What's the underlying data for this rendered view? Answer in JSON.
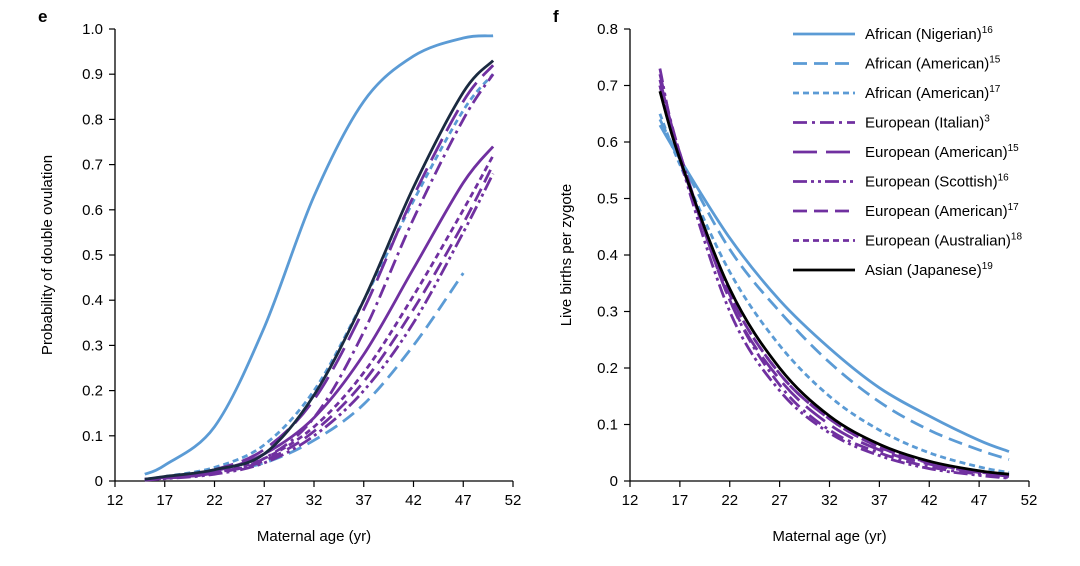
{
  "chart_data": [
    {
      "type": "line",
      "panel_label": "e",
      "xlabel": "Maternal age (yr)",
      "ylabel": "Probability of double ovulation",
      "xlim": [
        12,
        52
      ],
      "ylim": [
        0,
        1.0
      ],
      "xticks": [
        "12",
        "17",
        "22",
        "27",
        "32",
        "37",
        "42",
        "47",
        "52"
      ],
      "yticks": [
        "0",
        "0.1",
        "0.2",
        "0.3",
        "0.4",
        "0.5",
        "0.6",
        "0.7",
        "0.8",
        "0.9",
        "1.0"
      ],
      "grid": false,
      "series": [
        {
          "name": "African (Nigerian)",
          "sup": "16",
          "color": "#5b9bd5",
          "dash": "solid",
          "x": [
            15,
            17,
            22,
            27,
            32,
            37,
            42,
            47,
            50
          ],
          "y": [
            0.015,
            0.035,
            0.12,
            0.34,
            0.63,
            0.84,
            0.94,
            0.98,
            0.985
          ]
        },
        {
          "name": "African (American)",
          "sup": "15",
          "color": "#5b9bd5",
          "dash": "dash",
          "x": [
            15,
            17,
            22,
            27,
            32,
            37,
            42,
            47
          ],
          "y": [
            0.003,
            0.008,
            0.02,
            0.04,
            0.09,
            0.17,
            0.3,
            0.46
          ]
        },
        {
          "name": "African (American)",
          "sup": "17",
          "color": "#5b9bd5",
          "dash": "shortdash",
          "x": [
            15,
            17,
            22,
            27,
            32,
            37,
            42,
            47,
            50
          ],
          "y": [
            0.004,
            0.01,
            0.03,
            0.08,
            0.2,
            0.4,
            0.62,
            0.82,
            0.9
          ]
        },
        {
          "name": "European (Italian)",
          "sup": "3",
          "color": "#7030a0",
          "dash": "dashdot",
          "x": [
            15,
            17,
            22,
            27,
            32,
            37,
            42,
            47,
            50
          ],
          "y": [
            0.003,
            0.006,
            0.018,
            0.05,
            0.14,
            0.33,
            0.58,
            0.8,
            0.9
          ]
        },
        {
          "name": "European (American)",
          "sup": "15",
          "color": "#7030a0",
          "dash": "longdash",
          "x": [
            15,
            17,
            22,
            27,
            32,
            37,
            42,
            47,
            50
          ],
          "y": [
            0.004,
            0.008,
            0.025,
            0.07,
            0.18,
            0.38,
            0.63,
            0.84,
            0.92
          ]
        },
        {
          "name": "European (Scottish)",
          "sup": "16",
          "color": "#7030a0",
          "dash": "dashdotdot",
          "x": [
            15,
            17,
            22,
            27,
            32,
            37,
            42,
            47,
            50
          ],
          "y": [
            0.002,
            0.005,
            0.015,
            0.04,
            0.1,
            0.2,
            0.35,
            0.55,
            0.68
          ]
        },
        {
          "name": "European (American)",
          "sup": "17",
          "color": "#7030a0",
          "dash": "dash",
          "x": [
            15,
            17,
            22,
            27,
            32,
            37,
            42,
            47,
            50
          ],
          "y": [
            0.003,
            0.006,
            0.017,
            0.045,
            0.11,
            0.22,
            0.38,
            0.57,
            0.7
          ]
        },
        {
          "name": "European (Australian)",
          "sup": "18",
          "color": "#7030a0",
          "dash": "shortdash",
          "x": [
            15,
            17,
            22,
            27,
            32,
            37,
            42,
            47,
            50
          ],
          "y": [
            0.003,
            0.006,
            0.018,
            0.05,
            0.12,
            0.24,
            0.41,
            0.6,
            0.72
          ]
        },
        {
          "name": "European (American)",
          "sup": "15",
          "color": "#7030a0",
          "dash": "solid",
          "x": [
            15,
            17,
            22,
            27,
            32,
            37,
            42,
            47,
            50
          ],
          "y": [
            0.004,
            0.008,
            0.022,
            0.06,
            0.14,
            0.28,
            0.47,
            0.66,
            0.74
          ]
        },
        {
          "name": "Asian (Japanese)",
          "sup": "19",
          "color": "#1a2a40",
          "dash": "solid",
          "x": [
            15,
            17,
            22,
            27,
            32,
            37,
            42,
            47,
            50
          ],
          "y": [
            0.004,
            0.01,
            0.025,
            0.06,
            0.19,
            0.4,
            0.65,
            0.86,
            0.93
          ]
        }
      ]
    },
    {
      "type": "line",
      "panel_label": "f",
      "xlabel": "Maternal age (yr)",
      "ylabel": "Live births per zygote",
      "xlim": [
        12,
        52
      ],
      "ylim": [
        0,
        0.8
      ],
      "xticks": [
        "12",
        "17",
        "22",
        "27",
        "32",
        "37",
        "42",
        "47",
        "52"
      ],
      "yticks": [
        "0",
        "0.1",
        "0.2",
        "0.3",
        "0.4",
        "0.5",
        "0.6",
        "0.7",
        "0.8"
      ],
      "grid": false,
      "legend_position": "top-right",
      "series": [
        {
          "name": "African (Nigerian)",
          "sup": "16",
          "color": "#5b9bd5",
          "dash": "solid",
          "x": [
            15,
            17,
            22,
            27,
            32,
            37,
            42,
            47,
            50
          ],
          "y": [
            0.63,
            0.57,
            0.43,
            0.32,
            0.235,
            0.165,
            0.115,
            0.072,
            0.052
          ]
        },
        {
          "name": "African (American)",
          "sup": "15",
          "color": "#5b9bd5",
          "dash": "dash",
          "x": [
            15,
            17,
            22,
            27,
            32,
            37,
            42,
            47,
            50
          ],
          "y": [
            0.64,
            0.57,
            0.41,
            0.3,
            0.21,
            0.14,
            0.09,
            0.055,
            0.038
          ]
        },
        {
          "name": "African (American)",
          "sup": "17",
          "color": "#5b9bd5",
          "dash": "shortdash",
          "x": [
            15,
            17,
            22,
            27,
            32,
            37,
            42,
            47,
            50
          ],
          "y": [
            0.65,
            0.56,
            0.37,
            0.24,
            0.15,
            0.09,
            0.05,
            0.025,
            0.015
          ]
        },
        {
          "name": "European (Italian)",
          "sup": "3",
          "color": "#7030a0",
          "dash": "dashdot",
          "x": [
            15,
            17,
            22,
            27,
            32,
            37,
            42,
            47,
            50
          ],
          "y": [
            0.72,
            0.58,
            0.32,
            0.17,
            0.09,
            0.05,
            0.025,
            0.012,
            0.006
          ]
        },
        {
          "name": "European (American)",
          "sup": "15",
          "color": "#7030a0",
          "dash": "longdash",
          "x": [
            15,
            17,
            22,
            27,
            32,
            37,
            42,
            47,
            50
          ],
          "y": [
            0.71,
            0.58,
            0.32,
            0.18,
            0.1,
            0.055,
            0.03,
            0.015,
            0.008
          ]
        },
        {
          "name": "European (Scottish)",
          "sup": "16",
          "color": "#7030a0",
          "dash": "dashdotdot",
          "x": [
            15,
            17,
            22,
            27,
            32,
            37,
            42,
            47,
            50
          ],
          "y": [
            0.73,
            0.57,
            0.3,
            0.16,
            0.085,
            0.045,
            0.022,
            0.01,
            0.005
          ]
        },
        {
          "name": "European (American)",
          "sup": "17",
          "color": "#7030a0",
          "dash": "dash",
          "x": [
            15,
            17,
            22,
            27,
            32,
            37,
            42,
            47,
            50
          ],
          "y": [
            0.7,
            0.57,
            0.33,
            0.19,
            0.11,
            0.06,
            0.032,
            0.016,
            0.01
          ]
        },
        {
          "name": "European (Australian)",
          "sup": "18",
          "color": "#7030a0",
          "dash": "shortdash",
          "x": [
            15,
            17,
            22,
            27,
            32,
            37,
            42,
            47,
            50
          ],
          "y": [
            0.7,
            0.57,
            0.33,
            0.19,
            0.11,
            0.06,
            0.033,
            0.017,
            0.011
          ]
        },
        {
          "name": "Asian (Japanese)",
          "sup": "19",
          "color": "#000000",
          "dash": "solid",
          "x": [
            15,
            17,
            22,
            27,
            32,
            37,
            42,
            47,
            50
          ],
          "y": [
            0.69,
            0.57,
            0.34,
            0.2,
            0.115,
            0.065,
            0.035,
            0.018,
            0.012
          ]
        }
      ]
    }
  ]
}
